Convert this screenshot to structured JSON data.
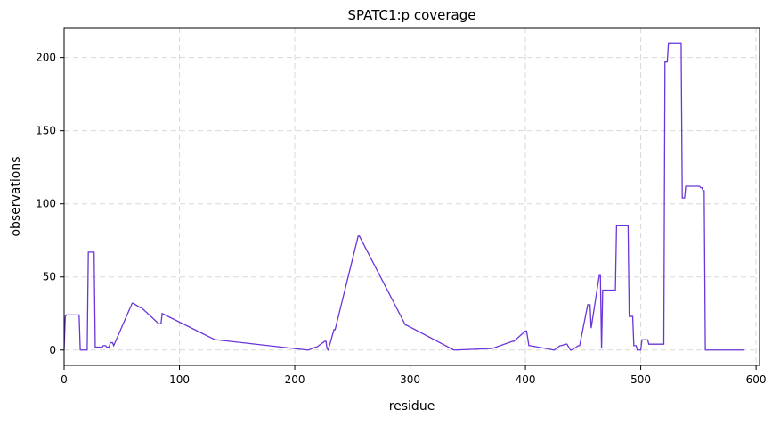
{
  "chart_data": {
    "type": "line",
    "title": "SPATC1:p coverage",
    "xlabel": "residue",
    "ylabel": "observations",
    "xlim": [
      0,
      603
    ],
    "ylim": [
      -10.5,
      220.5
    ],
    "xticks": [
      0,
      100,
      200,
      300,
      400,
      500,
      600
    ],
    "yticks": [
      0,
      50,
      100,
      150,
      200
    ],
    "grid": true,
    "line_color": "#6a35d9",
    "series": [
      {
        "x": [
          0,
          1,
          2,
          13,
          14,
          20,
          21,
          26,
          27,
          33,
          34,
          36,
          37,
          39,
          40,
          42,
          43,
          59,
          60,
          66,
          67,
          82,
          83,
          84,
          85,
          131,
          132,
          211,
          212,
          218,
          219,
          226,
          227,
          228,
          229,
          234,
          235,
          255,
          256,
          296,
          297,
          338,
          339,
          370,
          371,
          389,
          390,
          400,
          401,
          403,
          404,
          418,
          419,
          424,
          425,
          430,
          431,
          435,
          436,
          439,
          440,
          446,
          447,
          454,
          455,
          456,
          457,
          464,
          465,
          466,
          467,
          478,
          479,
          489,
          490,
          493,
          494,
          496,
          497,
          500,
          501,
          506,
          507,
          520,
          521,
          523,
          524,
          535,
          536,
          538,
          539,
          551,
          552,
          553,
          554,
          555,
          556,
          590
        ],
        "values": [
          0,
          23,
          24,
          24,
          0,
          0,
          67,
          67,
          2,
          2,
          3,
          3,
          2,
          2,
          5,
          5,
          3,
          32,
          32,
          29,
          29,
          18,
          18,
          18,
          25,
          7,
          7,
          0,
          0,
          2,
          2,
          6,
          6,
          1,
          0,
          14,
          14,
          78,
          78,
          17,
          17,
          0,
          0,
          1,
          1,
          6,
          6,
          13,
          13,
          3,
          3,
          1,
          1,
          0,
          0,
          3,
          3,
          4,
          4,
          0,
          0,
          3,
          3,
          31,
          31,
          31,
          15,
          51,
          51,
          1,
          41,
          41,
          85,
          85,
          23,
          23,
          3,
          3,
          0,
          0,
          7,
          7,
          4,
          4,
          197,
          197,
          210,
          210,
          104,
          104,
          112,
          112,
          111,
          111,
          109,
          109,
          0,
          0
        ]
      }
    ]
  }
}
